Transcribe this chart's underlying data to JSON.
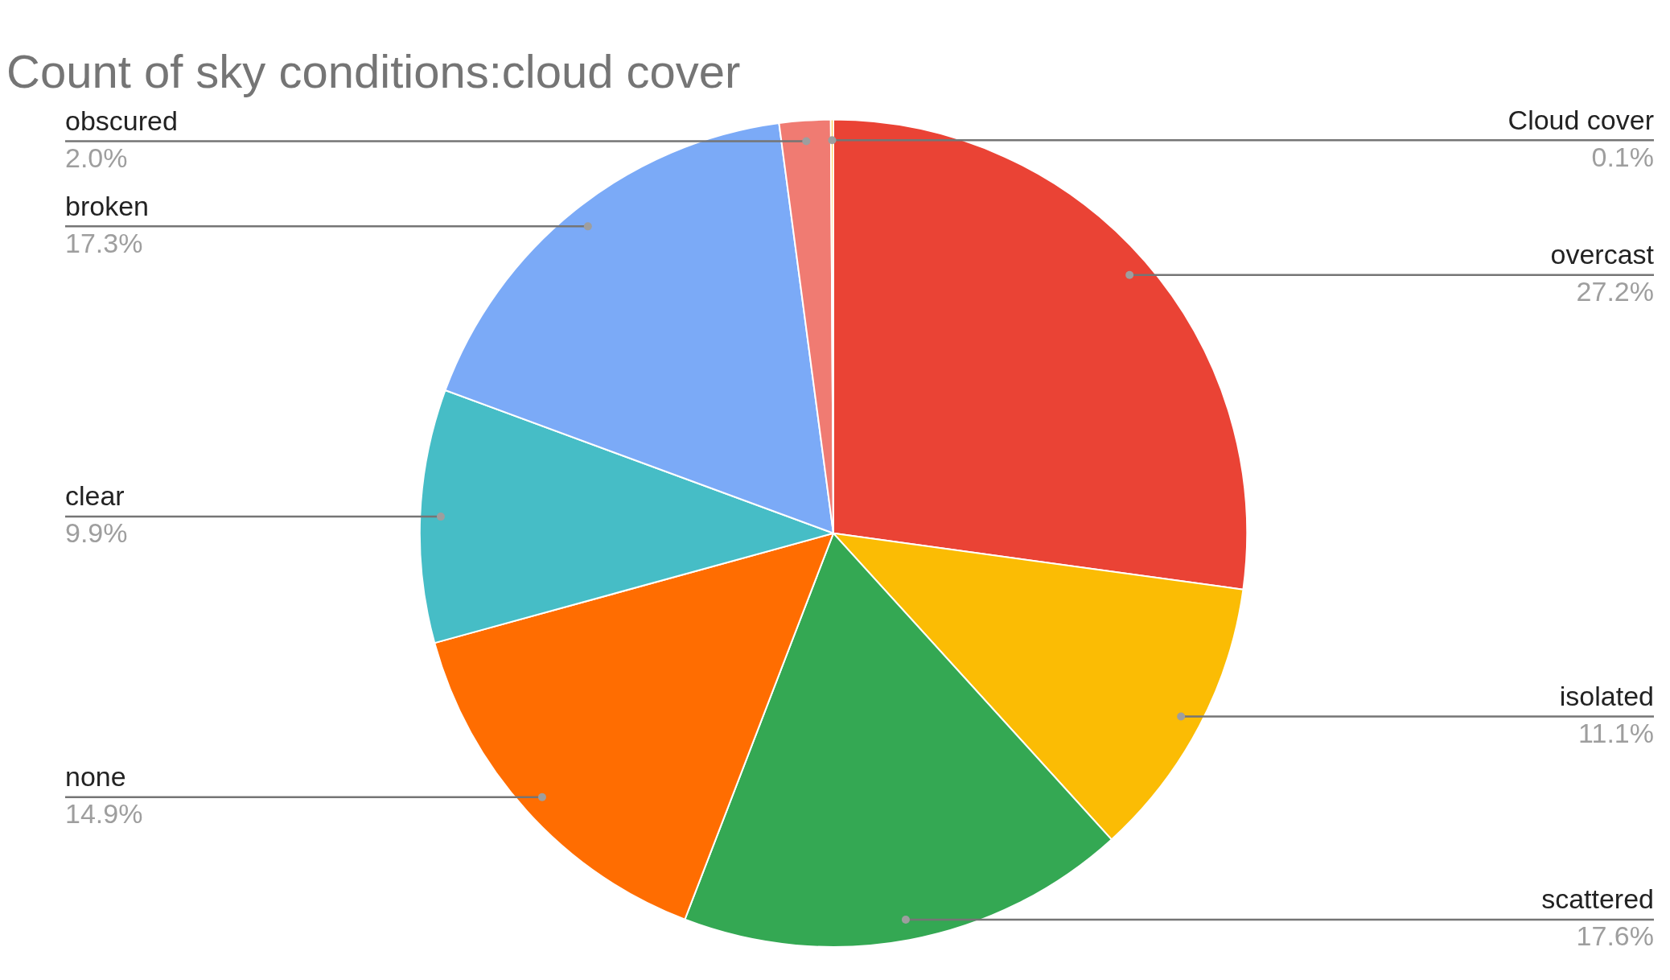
{
  "chart_data": {
    "type": "pie",
    "title": "Count of sky conditions:cloud cover",
    "categories": [
      "overcast",
      "isolated",
      "scattered",
      "none",
      "clear",
      "broken",
      "obscured",
      "Cloud cover"
    ],
    "values": [
      27.2,
      11.1,
      17.6,
      14.9,
      9.9,
      17.3,
      2.0,
      0.1
    ],
    "colors": [
      "#ea4335",
      "#fbbc04",
      "#34a853",
      "#ff6d01",
      "#46bdc6",
      "#7baaf7",
      "#f07b72",
      "#fcd04f"
    ],
    "value_labels": [
      "27.2%",
      "11.1%",
      "17.6%",
      "14.9%",
      "9.9%",
      "17.3%",
      "2.0%",
      "0.1%"
    ],
    "legend": false
  }
}
